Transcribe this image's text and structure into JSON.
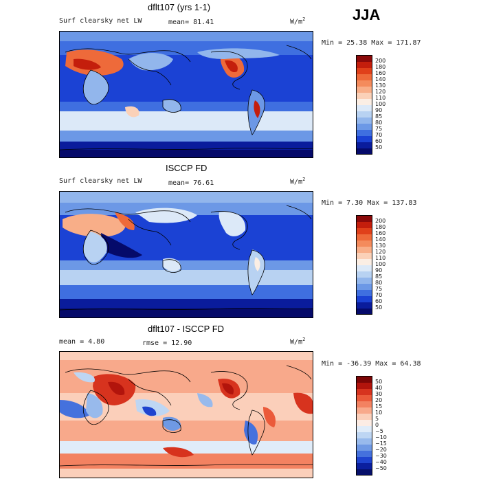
{
  "season": "JJA",
  "panels": [
    {
      "title": "dflt107 (yrs 1-1)",
      "left_label": "Surf clearsky net LW",
      "stat1": "mean=  81.41",
      "stat2": "",
      "units": "W/m",
      "units_sup": "2",
      "minmax": "Min =  25.38 Max = 171.87",
      "levels": [
        "200",
        "180",
        "160",
        "140",
        "130",
        "120",
        "110",
        "100",
        "90",
        "85",
        "80",
        "75",
        "70",
        "60",
        "50"
      ]
    },
    {
      "title": "ISCCP FD",
      "left_label": "Surf clearsky net LW",
      "stat1": "mean=  76.61",
      "stat2": "",
      "units": "W/m",
      "units_sup": "2",
      "minmax": "Min =   7.30 Max = 137.83",
      "levels": [
        "200",
        "180",
        "160",
        "140",
        "130",
        "120",
        "110",
        "100",
        "90",
        "85",
        "80",
        "75",
        "70",
        "60",
        "50"
      ]
    },
    {
      "title": "dflt107 - ISCCP FD",
      "left_label": "mean =   4.80",
      "stat1": "",
      "stat2": "rmse =  12.90",
      "units": "W/m",
      "units_sup": "2",
      "minmax": "Min = -36.39 Max =  64.38",
      "levels": [
        "50",
        "40",
        "30",
        "20",
        "15",
        "10",
        "5",
        "0",
        "−5",
        "−10",
        "−15",
        "−20",
        "−30",
        "−40",
        "−50"
      ]
    }
  ],
  "colors": {
    "abs_scale": [
      "#8b0a0a",
      "#c41e0c",
      "#e0401a",
      "#ee6a3a",
      "#f48b5c",
      "#f8ae88",
      "#fbd1b8",
      "#fbeee4",
      "#dce9f8",
      "#b8d2f2",
      "#92b6ec",
      "#6c98e6",
      "#3f6fe0",
      "#1b42d4",
      "#0a1c9c",
      "#050a6a"
    ],
    "diff_scale": [
      "#7c0606",
      "#b2140c",
      "#d7331e",
      "#eb5a3a",
      "#f38261",
      "#f8a98b",
      "#fbcfba",
      "#fcece4",
      "#e0ecf9",
      "#bed6f3",
      "#98baec",
      "#6f99e4",
      "#4571dd",
      "#1f44cf",
      "#0b1f9e",
      "#06106a"
    ]
  }
}
